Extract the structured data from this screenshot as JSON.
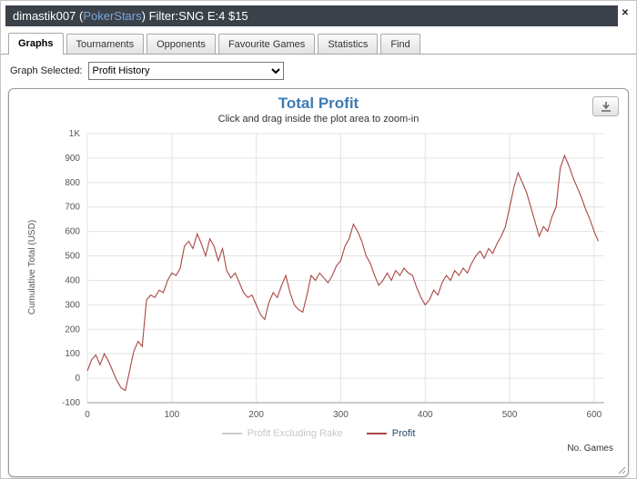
{
  "window": {
    "title_prefix": "dimastik007 (",
    "title_site": "PokerStars",
    "title_suffix": ") Filter:SNG E:4 $15",
    "close_glyph": "✕"
  },
  "tabs": [
    {
      "label": "Graphs",
      "active": true
    },
    {
      "label": "Tournaments",
      "active": false
    },
    {
      "label": "Opponents",
      "active": false
    },
    {
      "label": "Favourite Games",
      "active": false
    },
    {
      "label": "Statistics",
      "active": false
    },
    {
      "label": "Find",
      "active": false
    }
  ],
  "graph_selector": {
    "label": "Graph Selected:",
    "selected": "Profit History"
  },
  "chart_data": {
    "type": "line",
    "title": "Total Profit",
    "subtitle": "Click and drag inside the plot area to zoom-in",
    "ylabel": "Cumulative Total (USD)",
    "xlabel": "No. Games",
    "xlim": [
      0,
      612
    ],
    "ylim": [
      -100,
      1000
    ],
    "x_ticks": [
      0,
      100,
      200,
      300,
      400,
      500,
      600
    ],
    "y_ticks": [
      -100,
      0,
      100,
      200,
      300,
      400,
      500,
      600,
      700,
      800,
      900,
      1000
    ],
    "y_tick_labels": [
      "-100",
      "0",
      "100",
      "200",
      "300",
      "400",
      "500",
      "600",
      "700",
      "800",
      "900",
      "1K"
    ],
    "grid": true,
    "grid_color": "#e3e3e3",
    "axis_color": "#999999",
    "legend_position": "bottom",
    "series": [
      {
        "name": "Profit Excluding Rake",
        "color": "#cccccc",
        "label_color": "#c8c8c8",
        "disabled": true,
        "x_start": 0,
        "x_step": 5,
        "values": []
      },
      {
        "name": "Profit",
        "color": "#aa4643",
        "label_color": "#274b6d",
        "disabled": false,
        "x_start": 0,
        "x_step": 5,
        "values": [
          30,
          75,
          95,
          55,
          100,
          70,
          30,
          -10,
          -40,
          -50,
          30,
          110,
          150,
          130,
          320,
          340,
          330,
          360,
          350,
          400,
          430,
          420,
          450,
          540,
          560,
          530,
          590,
          550,
          500,
          570,
          540,
          480,
          530,
          440,
          410,
          430,
          390,
          350,
          330,
          340,
          300,
          260,
          240,
          310,
          350,
          330,
          380,
          420,
          350,
          300,
          280,
          270,
          340,
          420,
          400,
          430,
          410,
          390,
          420,
          460,
          480,
          540,
          570,
          630,
          600,
          560,
          500,
          470,
          420,
          380,
          400,
          430,
          400,
          440,
          420,
          450,
          430,
          420,
          370,
          330,
          300,
          320,
          360,
          340,
          390,
          420,
          400,
          440,
          420,
          450,
          430,
          470,
          500,
          520,
          490,
          530,
          510,
          550,
          580,
          620,
          700,
          780,
          840,
          800,
          760,
          700,
          640,
          580,
          620,
          600,
          660,
          700,
          860,
          910,
          870,
          820,
          780,
          740,
          690,
          650,
          600,
          560
        ]
      }
    ]
  }
}
